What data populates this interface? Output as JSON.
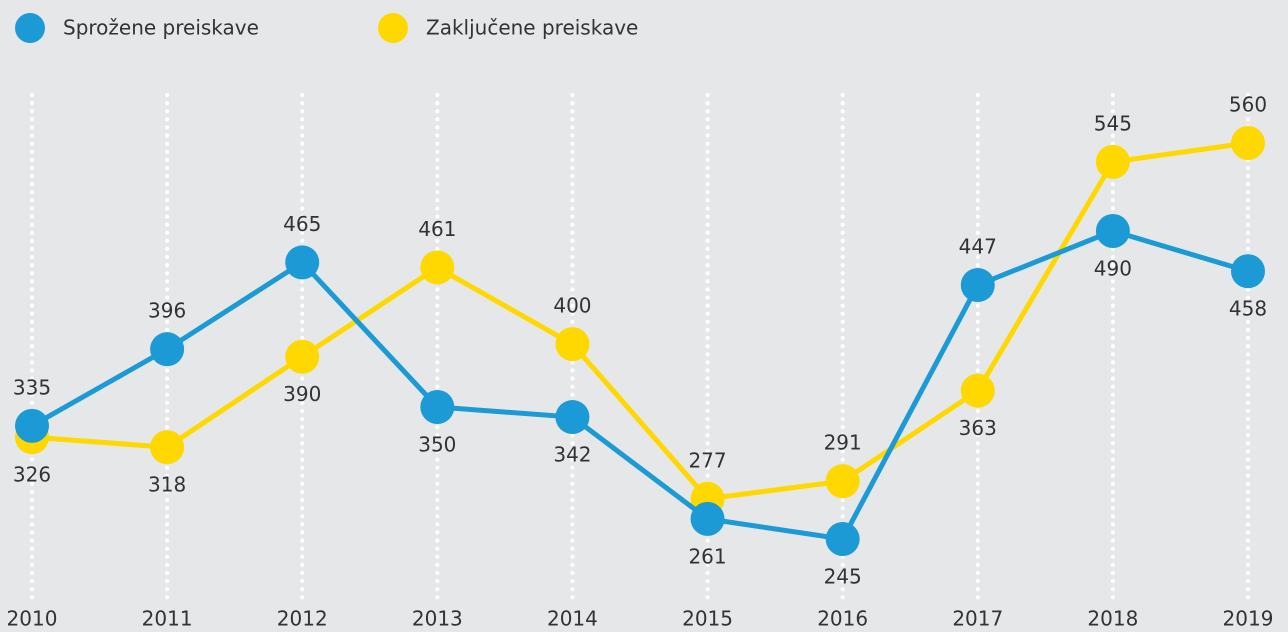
{
  "chart_data": {
    "type": "line",
    "categories": [
      "2010",
      "2011",
      "2012",
      "2013",
      "2014",
      "2015",
      "2016",
      "2017",
      "2018",
      "2019"
    ],
    "series": [
      {
        "name": "Sprožene preiskave",
        "color": "#1b9ad6",
        "label_color": "#1b8fcf",
        "values": [
          335,
          396,
          465,
          350,
          342,
          261,
          245,
          447,
          490,
          458
        ]
      },
      {
        "name": "Zaključene preiskave",
        "color": "#ffd800",
        "label_color": "#5a5a5a",
        "values": [
          326,
          318,
          390,
          461,
          400,
          277,
          291,
          363,
          545,
          560
        ]
      }
    ],
    "grid": true,
    "legend": "top-left"
  }
}
